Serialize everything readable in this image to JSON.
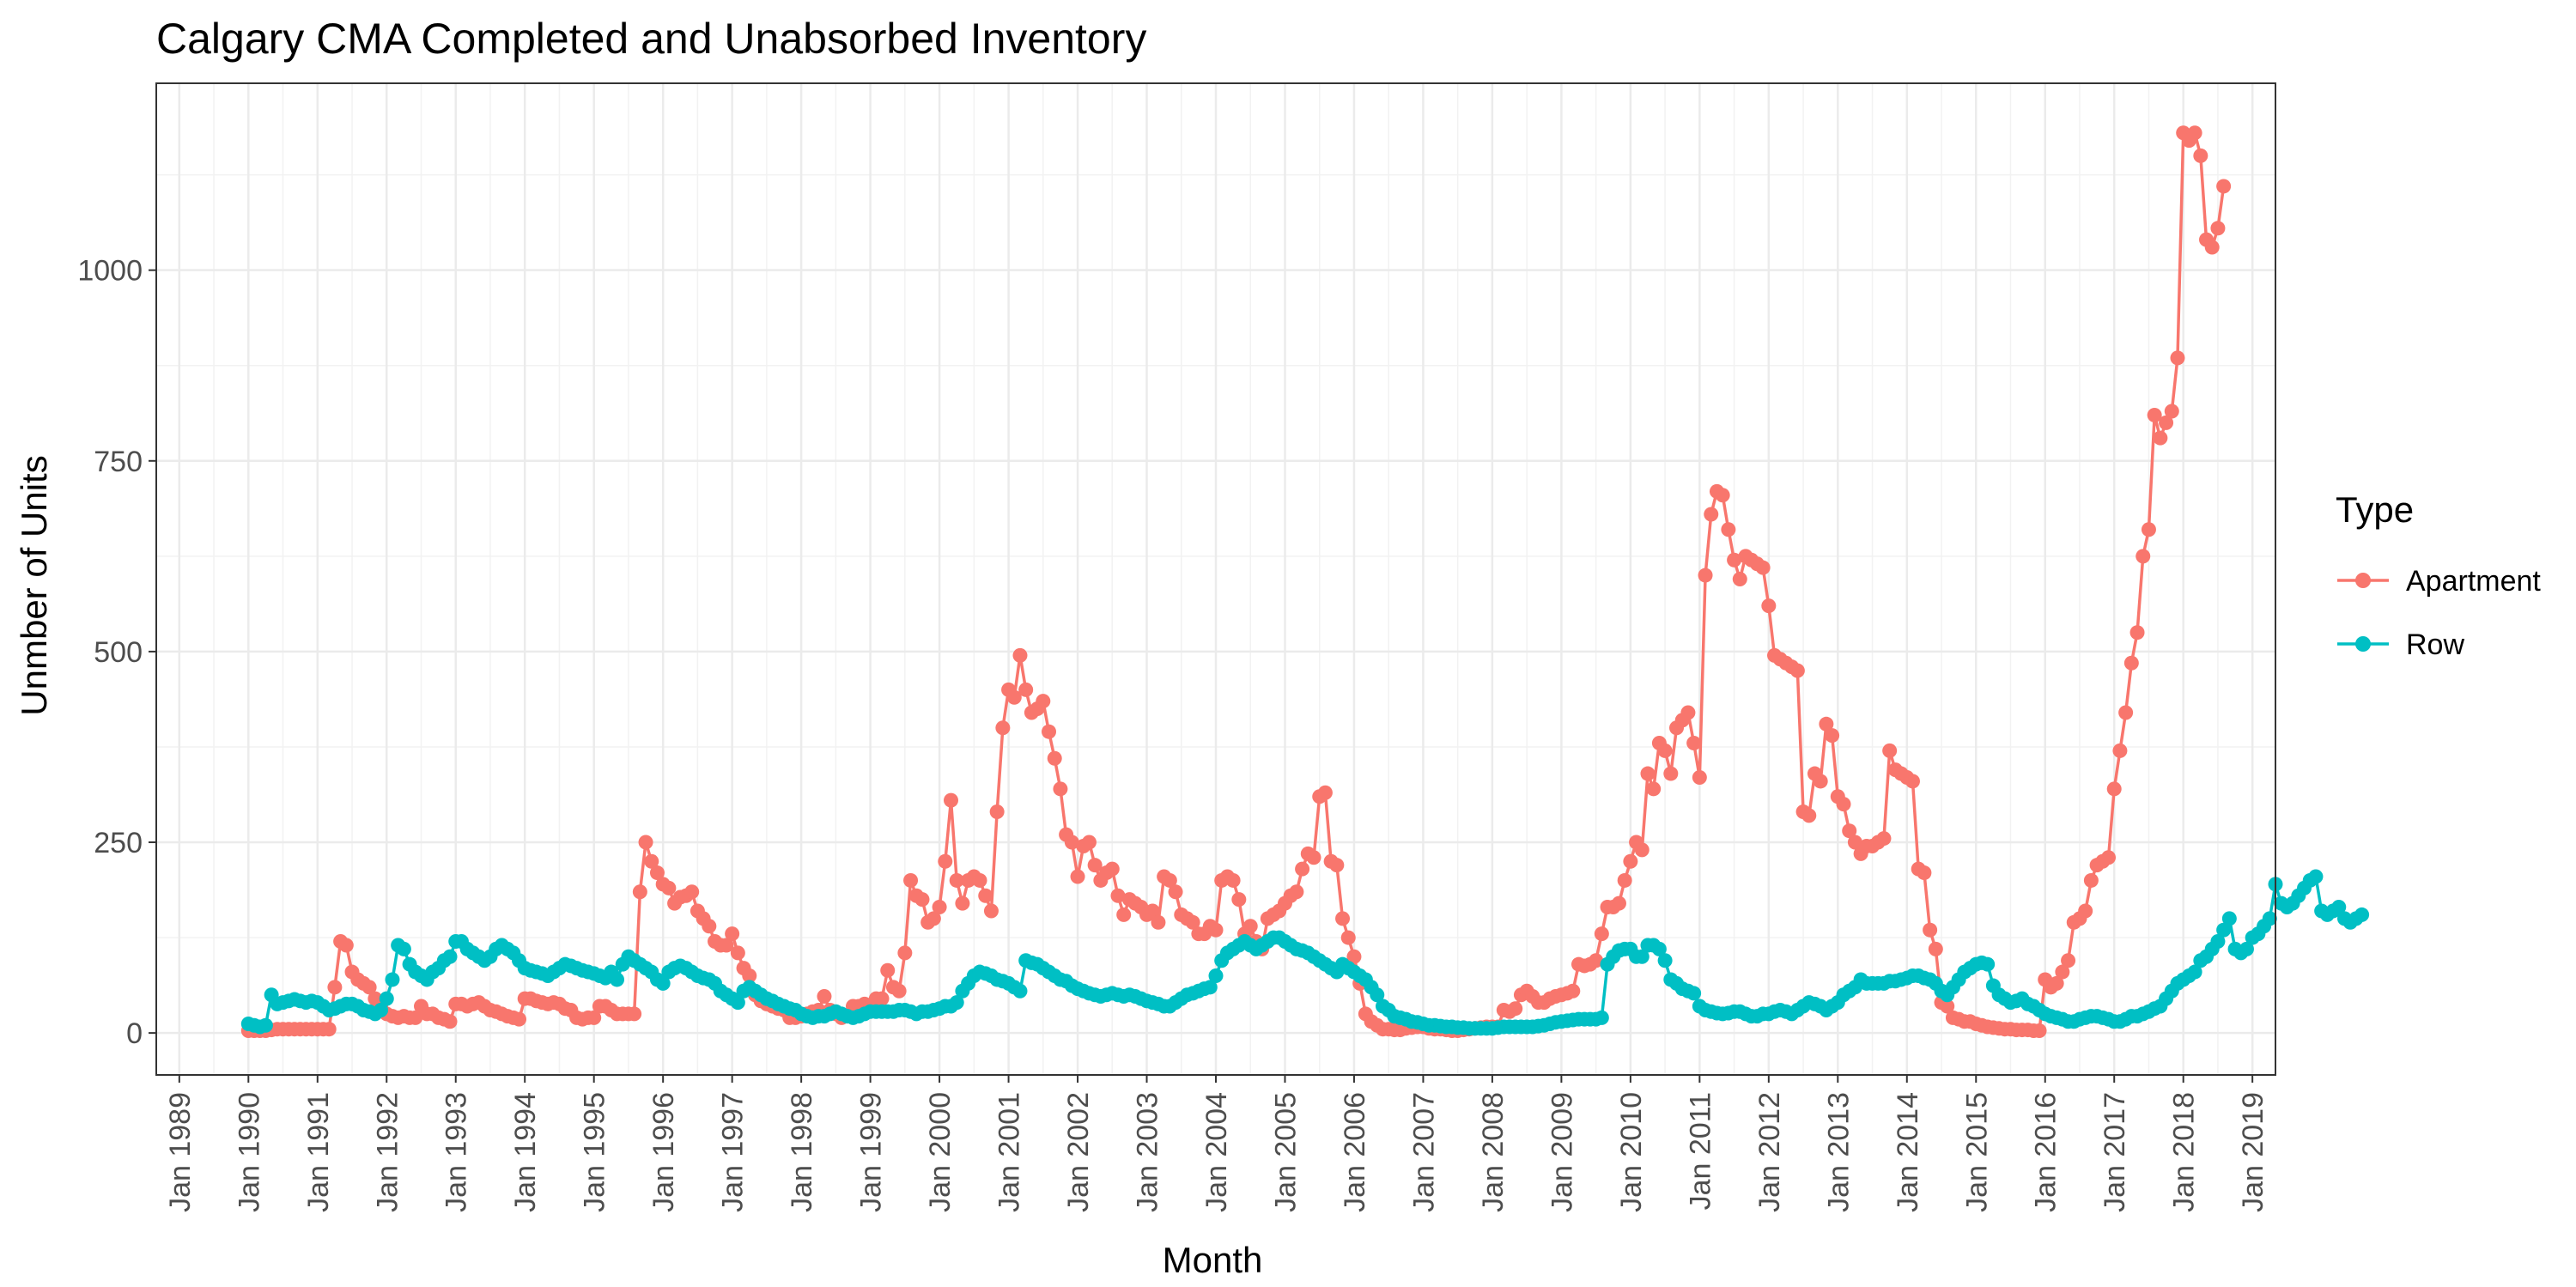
{
  "chart_data": {
    "type": "line",
    "title": "Calgary CMA Completed and Unabsorbed Inventory",
    "xlabel": "Month",
    "ylabel": "Unmber of Units",
    "x_range": [
      "1988-09",
      "2019-05"
    ],
    "ylim": [
      -55,
      1245
    ],
    "y_ticks": [
      0,
      250,
      500,
      750,
      1000
    ],
    "x_ticks": [
      "Jan 1989",
      "Jan 1990",
      "Jan 1991",
      "Jan 1992",
      "Jan 1993",
      "Jan 1994",
      "Jan 1995",
      "Jan 1996",
      "Jan 1997",
      "Jan 1998",
      "Jan 1999",
      "Jan 2000",
      "Jan 2001",
      "Jan 2002",
      "Jan 2003",
      "Jan 2004",
      "Jan 2005",
      "Jan 2006",
      "Jan 2007",
      "Jan 2008",
      "Jan 2009",
      "Jan 2010",
      "Jan 2011",
      "Jan 2012",
      "Jan 2013",
      "Jan 2014",
      "Jan 2015",
      "Jan 2016",
      "Jan 2017",
      "Jan 2018",
      "Jan 2019"
    ],
    "grid": true,
    "legend_title": "Type",
    "legend_position": "right",
    "x_start": "1990-01",
    "series": [
      {
        "name": "Apartment",
        "color": "#F8766D",
        "values": [
          3,
          3,
          3,
          3,
          4,
          5,
          5,
          5,
          5,
          5,
          5,
          5,
          5,
          5,
          5,
          60,
          120,
          115,
          80,
          70,
          65,
          60,
          45,
          35,
          25,
          22,
          20,
          22,
          20,
          20,
          35,
          25,
          25,
          20,
          18,
          15,
          38,
          38,
          35,
          38,
          40,
          35,
          30,
          28,
          25,
          22,
          20,
          18,
          45,
          45,
          42,
          40,
          38,
          40,
          38,
          32,
          30,
          20,
          18,
          20,
          20,
          35,
          35,
          30,
          25,
          25,
          25,
          25,
          185,
          250,
          225,
          210,
          195,
          190,
          170,
          178,
          180,
          185,
          160,
          150,
          140,
          120,
          115,
          115,
          130,
          105,
          85,
          75,
          50,
          42,
          38,
          35,
          32,
          30,
          20,
          20,
          22,
          25,
          28,
          30,
          48,
          30,
          25,
          20,
          22,
          35,
          35,
          38,
          35,
          45,
          45,
          82,
          60,
          55,
          105,
          200,
          180,
          175,
          145,
          150,
          165,
          225,
          305,
          200,
          170,
          200,
          205,
          200,
          180,
          160,
          290,
          400,
          450,
          440,
          495,
          450,
          420,
          425,
          435,
          395,
          360,
          320,
          260,
          250,
          205,
          245,
          250,
          220,
          200,
          210,
          215,
          180,
          155,
          175,
          170,
          165,
          155,
          160,
          145,
          205,
          200,
          185,
          155,
          150,
          145,
          130,
          130,
          140,
          135,
          200,
          205,
          200,
          175,
          130,
          140,
          120,
          110,
          150,
          155,
          160,
          170,
          180,
          185,
          215,
          235,
          230,
          310,
          315,
          225,
          220,
          150,
          125,
          100,
          65,
          25,
          15,
          10,
          5,
          5,
          4,
          4,
          6,
          7,
          8,
          8,
          6,
          5,
          5,
          4,
          3,
          3,
          4,
          5,
          6,
          7,
          8,
          8,
          8,
          30,
          28,
          32,
          50,
          55,
          48,
          40,
          40,
          45,
          48,
          50,
          52,
          55,
          90,
          88,
          90,
          95,
          130,
          165,
          165,
          170,
          200,
          225,
          250,
          240,
          340,
          320,
          380,
          370,
          340,
          400,
          410,
          420,
          380,
          335,
          600,
          680,
          710,
          705,
          660,
          620,
          595,
          625,
          620,
          615,
          610,
          560,
          495,
          490,
          485,
          480,
          475,
          290,
          285,
          340,
          330,
          405,
          390,
          310,
          300,
          265,
          250,
          235,
          245,
          245,
          250,
          255,
          370,
          345,
          340,
          335,
          330,
          215,
          210,
          135,
          110,
          40,
          35,
          20,
          18,
          15,
          15,
          12,
          10,
          8,
          7,
          6,
          5,
          5,
          4,
          4,
          4,
          3,
          3,
          70,
          60,
          65,
          80,
          95,
          145,
          150,
          160,
          200,
          220,
          225,
          230,
          320,
          370,
          420,
          485,
          525,
          625,
          660,
          810,
          780,
          800,
          815,
          885,
          1180,
          1170,
          1180,
          1150,
          1040,
          1030,
          1055,
          1110
        ]
      },
      {
        "name": "Row",
        "color": "#00BFC4",
        "values": [
          12,
          10,
          8,
          10,
          50,
          38,
          40,
          42,
          44,
          42,
          40,
          42,
          40,
          35,
          30,
          32,
          35,
          38,
          38,
          35,
          30,
          28,
          25,
          30,
          45,
          70,
          115,
          110,
          90,
          80,
          75,
          70,
          80,
          85,
          95,
          100,
          120,
          120,
          110,
          105,
          100,
          95,
          100,
          110,
          115,
          110,
          105,
          95,
          85,
          82,
          80,
          78,
          75,
          80,
          85,
          90,
          88,
          85,
          82,
          80,
          78,
          75,
          72,
          80,
          70,
          90,
          100,
          95,
          90,
          85,
          80,
          70,
          65,
          80,
          85,
          88,
          85,
          80,
          75,
          72,
          70,
          65,
          55,
          50,
          45,
          40,
          55,
          60,
          55,
          50,
          45,
          42,
          38,
          35,
          32,
          30,
          25,
          22,
          20,
          22,
          22,
          25,
          28,
          25,
          22,
          20,
          22,
          25,
          28,
          28,
          28,
          28,
          28,
          30,
          30,
          28,
          25,
          28,
          28,
          30,
          32,
          35,
          35,
          40,
          55,
          65,
          75,
          80,
          78,
          75,
          70,
          68,
          65,
          60,
          55,
          95,
          92,
          90,
          85,
          80,
          75,
          70,
          68,
          62,
          58,
          55,
          52,
          50,
          48,
          50,
          52,
          50,
          48,
          50,
          48,
          45,
          42,
          40,
          38,
          35,
          35,
          40,
          45,
          50,
          52,
          55,
          58,
          60,
          75,
          95,
          105,
          110,
          115,
          120,
          115,
          110,
          115,
          120,
          125,
          125,
          120,
          115,
          110,
          108,
          105,
          100,
          95,
          90,
          85,
          80,
          90,
          85,
          80,
          75,
          70,
          60,
          50,
          35,
          30,
          22,
          20,
          18,
          15,
          14,
          12,
          10,
          10,
          9,
          8,
          8,
          7,
          7,
          6,
          6,
          6,
          6,
          6,
          7,
          8,
          8,
          8,
          8,
          8,
          8,
          9,
          10,
          12,
          14,
          15,
          16,
          17,
          18,
          18,
          18,
          18,
          20,
          90,
          100,
          108,
          110,
          110,
          100,
          100,
          115,
          115,
          110,
          95,
          70,
          65,
          58,
          55,
          52,
          35,
          30,
          28,
          26,
          25,
          26,
          28,
          28,
          25,
          22,
          22,
          25,
          25,
          28,
          30,
          28,
          25,
          30,
          35,
          40,
          38,
          35,
          30,
          35,
          40,
          50,
          55,
          60,
          70,
          65,
          65,
          65,
          65,
          68,
          68,
          70,
          72,
          75,
          75,
          72,
          70,
          65,
          55,
          50,
          60,
          70,
          80,
          85,
          90,
          92,
          90,
          62,
          50,
          45,
          40,
          42,
          45,
          38,
          35,
          30,
          25,
          22,
          20,
          18,
          15,
          15,
          18,
          20,
          22,
          22,
          20,
          18,
          15,
          15,
          18,
          22,
          22,
          25,
          28,
          32,
          35,
          45,
          55,
          65,
          70,
          75,
          80,
          95,
          100,
          110,
          120,
          135,
          150,
          110,
          105,
          110,
          125,
          130,
          140,
          150,
          195,
          170,
          165,
          170,
          180,
          190,
          200,
          205,
          160,
          155,
          160,
          165,
          150,
          145,
          150,
          155
        ]
      }
    ]
  }
}
